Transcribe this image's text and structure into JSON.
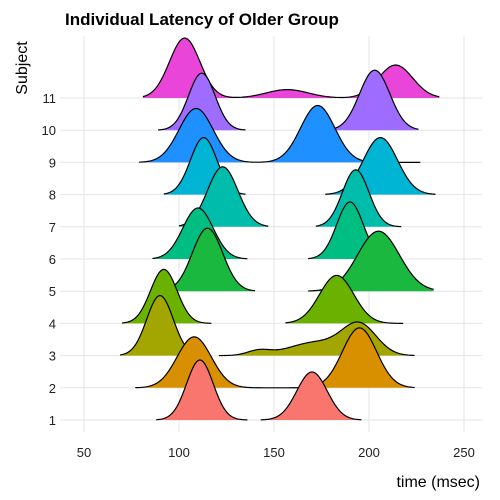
{
  "chart_data": {
    "type": "ridgeline",
    "title": "Individual Latency of Older Group",
    "xlabel": "time (msec)",
    "ylabel": "Subject",
    "xlim": [
      40,
      255
    ],
    "x_ticks": [
      50,
      100,
      150,
      200,
      250
    ],
    "grid": true,
    "series": [
      {
        "name": "1",
        "color": "#F8766D",
        "components": [
          {
            "mu": 111,
            "sd": 7,
            "w": 1.0,
            "from": 88,
            "to": 136
          },
          {
            "mu": 170,
            "sd": 8,
            "w": 0.8,
            "from": 143,
            "to": 196
          }
        ]
      },
      {
        "name": "2",
        "color": "#D89000",
        "components": [
          {
            "mu": 108,
            "sd": 9,
            "w": 0.85,
            "from": 77,
            "to": 224
          },
          {
            "mu": 195,
            "sd": 9,
            "w": 1.0,
            "from": 77,
            "to": 224
          }
        ]
      },
      {
        "name": "3",
        "color": "#A3A500",
        "components": [
          {
            "mu": 90,
            "sd": 7,
            "w": 1.0,
            "from": 69,
            "to": 114
          },
          {
            "mu": 142,
            "sd": 6,
            "w": 0.08,
            "from": 121,
            "to": 224
          },
          {
            "mu": 172,
            "sd": 14,
            "w": 0.22,
            "from": 121,
            "to": 224
          },
          {
            "mu": 195,
            "sd": 9,
            "w": 0.5,
            "from": 121,
            "to": 224
          }
        ]
      },
      {
        "name": "4",
        "color": "#6BB100",
        "components": [
          {
            "mu": 92,
            "sd": 7,
            "w": 0.9,
            "from": 70,
            "to": 117
          },
          {
            "mu": 183,
            "sd": 9,
            "w": 0.8,
            "from": 156,
            "to": 218
          }
        ]
      },
      {
        "name": "5",
        "color": "#1BB840",
        "components": [
          {
            "mu": 115,
            "sd": 8,
            "w": 1.05,
            "from": 91,
            "to": 140
          },
          {
            "mu": 205,
            "sd": 11,
            "w": 1.0,
            "from": 168,
            "to": 234
          }
        ]
      },
      {
        "name": "6",
        "color": "#00BE81",
        "components": [
          {
            "mu": 110,
            "sd": 8,
            "w": 0.85,
            "from": 86,
            "to": 136
          },
          {
            "mu": 190,
            "sd": 7,
            "w": 0.95,
            "from": 168,
            "to": 214
          }
        ]
      },
      {
        "name": "7",
        "color": "#00BDAB",
        "components": [
          {
            "mu": 123,
            "sd": 8,
            "w": 1.0,
            "from": 100,
            "to": 147
          },
          {
            "mu": 193,
            "sd": 7,
            "w": 0.95,
            "from": 172,
            "to": 217
          }
        ]
      },
      {
        "name": "8",
        "color": "#00B5D3",
        "components": [
          {
            "mu": 113,
            "sd": 7,
            "w": 0.95,
            "from": 92,
            "to": 135
          },
          {
            "mu": 206,
            "sd": 9,
            "w": 0.95,
            "from": 177,
            "to": 235
          }
        ]
      },
      {
        "name": "9",
        "color": "#1E90FF",
        "components": [
          {
            "mu": 109,
            "sd": 9,
            "w": 0.9,
            "from": 79,
            "to": 227
          },
          {
            "mu": 173,
            "sd": 9,
            "w": 0.95,
            "from": 79,
            "to": 227
          }
        ]
      },
      {
        "name": "10",
        "color": "#9E6CFF",
        "components": [
          {
            "mu": 112,
            "sd": 7,
            "w": 0.95,
            "from": 89,
            "to": 135
          },
          {
            "mu": 203,
            "sd": 8,
            "w": 1.0,
            "from": 182,
            "to": 226
          }
        ]
      },
      {
        "name": "11",
        "color": "#E945D8",
        "components": [
          {
            "mu": 103,
            "sd": 8,
            "w": 1.0,
            "from": 81,
            "to": 237
          },
          {
            "mu": 157,
            "sd": 11,
            "w": 0.14,
            "from": 81,
            "to": 237
          },
          {
            "mu": 214,
            "sd": 9,
            "w": 0.55,
            "from": 81,
            "to": 237
          }
        ]
      }
    ],
    "extra_colors": {
      "11b": "#FF45AC"
    }
  }
}
